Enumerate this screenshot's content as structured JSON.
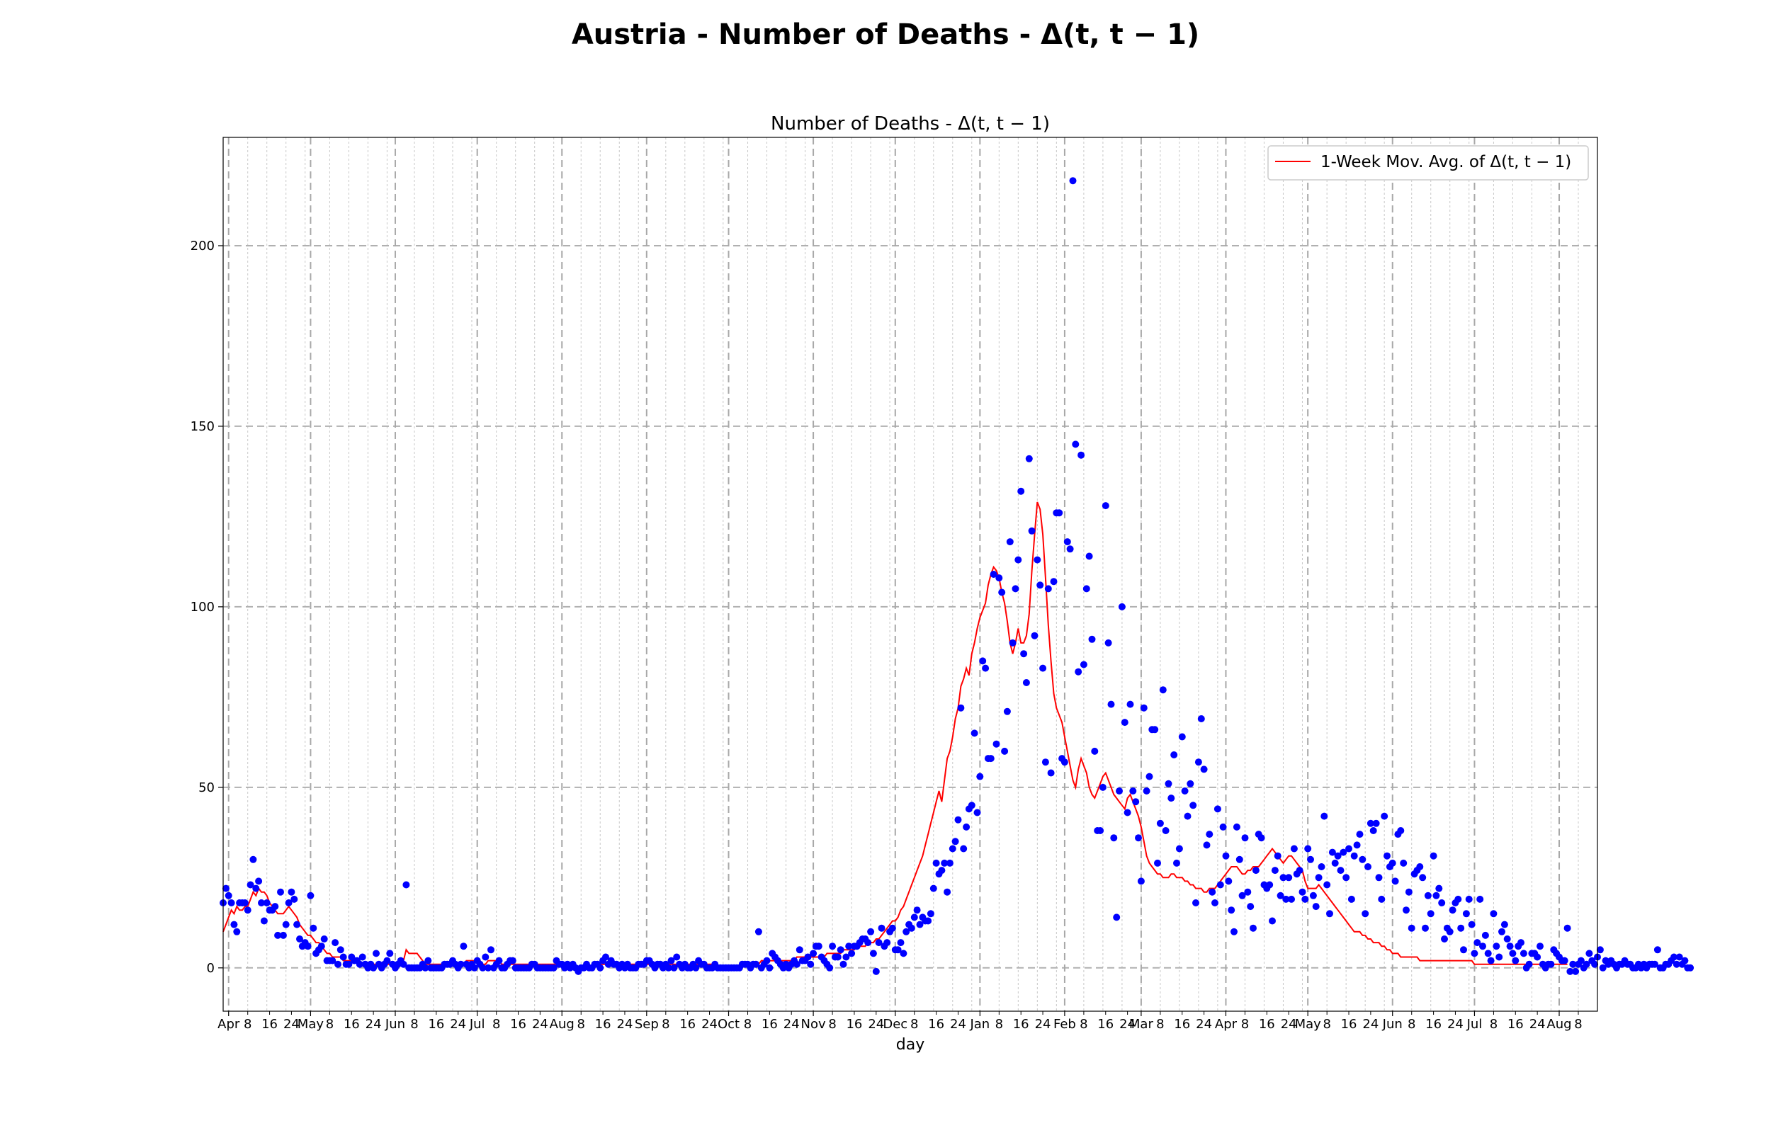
{
  "figure": {
    "suptitle": "Austria - Number of Deaths - Δ(t, t − 1)"
  },
  "chart_data": {
    "type": "scatter",
    "title": "Number of Deaths - Δ(t, t − 1)",
    "xlabel": "day",
    "ylabel": "",
    "x_range": [
      "2020-03-30",
      "2021-08-15"
    ],
    "ylim": [
      -12,
      230
    ],
    "yticks": [
      0,
      50,
      100,
      150,
      200
    ],
    "month_ticks": [
      {
        "date": "2020-04-01",
        "label": "Apr"
      },
      {
        "date": "2020-05-01",
        "label": "May"
      },
      {
        "date": "2020-06-01",
        "label": "Jun"
      },
      {
        "date": "2020-07-01",
        "label": "Jul"
      },
      {
        "date": "2020-08-01",
        "label": "Aug"
      },
      {
        "date": "2020-09-01",
        "label": "Sep"
      },
      {
        "date": "2020-10-01",
        "label": "Oct"
      },
      {
        "date": "2020-11-01",
        "label": "Nov"
      },
      {
        "date": "2020-12-01",
        "label": "Dec"
      },
      {
        "date": "2021-01-01",
        "label": "Jan"
      },
      {
        "date": "2021-02-01",
        "label": "Feb"
      },
      {
        "date": "2021-03-01",
        "label": "Mar"
      },
      {
        "date": "2021-04-01",
        "label": "Apr"
      },
      {
        "date": "2021-05-01",
        "label": "May"
      },
      {
        "date": "2021-06-01",
        "label": "Jun"
      },
      {
        "date": "2021-07-01",
        "label": "Jul"
      },
      {
        "date": "2021-08-01",
        "label": "Aug"
      }
    ],
    "day_tick_labels": [
      "8",
      "16",
      "24"
    ],
    "grid": true,
    "legend": {
      "position": "top-right",
      "entries": [
        {
          "name": "1-Week Mov. Avg. of Δ(t, t − 1)",
          "color": "#ff0000"
        }
      ]
    },
    "series": [
      {
        "name": "Δ(t, t − 1)",
        "kind": "points",
        "color": "#0000ff",
        "start": "2020-03-30",
        "values": [
          18,
          22,
          20,
          18,
          12,
          10,
          18,
          18,
          18,
          16,
          23,
          30,
          22,
          24,
          18,
          13,
          18,
          16,
          16,
          17,
          9,
          21,
          9,
          12,
          18,
          21,
          19,
          12,
          8,
          6,
          7,
          6,
          20,
          11,
          4,
          5,
          6,
          8,
          2,
          2,
          2,
          7,
          1,
          5,
          3,
          1,
          1,
          3,
          2,
          2,
          1,
          3,
          1,
          0,
          1,
          0,
          4,
          1,
          0,
          1,
          2,
          4,
          1,
          0,
          1,
          2,
          1,
          23,
          0,
          0,
          0,
          0,
          0,
          1,
          0,
          2,
          0,
          0,
          0,
          0,
          0,
          1,
          1,
          1,
          2,
          1,
          0,
          1,
          6,
          1,
          0,
          1,
          0,
          2,
          1,
          0,
          3,
          0,
          5,
          0,
          1,
          2,
          0,
          0,
          1,
          2,
          2,
          0,
          0,
          0,
          0,
          0,
          0,
          1,
          1,
          0,
          0,
          0,
          0,
          0,
          0,
          0,
          2,
          1,
          1,
          0,
          1,
          0,
          1,
          0,
          -1,
          0,
          0,
          1,
          0,
          0,
          1,
          1,
          0,
          2,
          3,
          1,
          2,
          1,
          1,
          0,
          1,
          0,
          1,
          0,
          0,
          0,
          1,
          1,
          1,
          2,
          2,
          1,
          0,
          1,
          1,
          0,
          1,
          0,
          2,
          0,
          3,
          1,
          0,
          1,
          0,
          0,
          1,
          0,
          2,
          1,
          1,
          0,
          0,
          0,
          1,
          0,
          0,
          0,
          0,
          0,
          0,
          0,
          0,
          0,
          1,
          1,
          1,
          0,
          1,
          1,
          10,
          0,
          1,
          2,
          0,
          4,
          3,
          2,
          1,
          0,
          1,
          0,
          1,
          2,
          1,
          5,
          2,
          2,
          3,
          1,
          4,
          6,
          6,
          3,
          2,
          1,
          0,
          6,
          3,
          3,
          5,
          1,
          3,
          6,
          4,
          6,
          6,
          7,
          8,
          8,
          7,
          10,
          4,
          -1,
          7,
          11,
          6,
          7,
          10,
          11,
          5,
          5,
          7,
          4,
          10,
          12,
          11,
          14,
          16,
          12,
          14,
          13,
          13,
          15,
          22,
          29,
          26,
          27,
          29,
          21,
          29,
          33,
          35,
          41,
          72,
          33,
          39,
          44,
          45,
          65,
          43,
          53,
          85,
          83,
          58,
          58,
          109,
          62,
          108,
          104,
          60,
          71,
          118,
          90,
          105,
          113,
          132,
          87,
          79,
          141,
          121,
          92,
          113,
          106,
          83,
          57,
          105,
          54,
          107,
          126,
          126,
          58,
          57,
          118,
          116,
          218,
          145,
          82,
          142,
          84,
          105,
          114,
          91,
          60,
          38,
          38,
          50,
          128,
          90,
          73,
          36,
          14,
          49,
          100,
          68,
          43,
          73,
          49,
          46,
          36,
          24,
          72,
          49,
          53,
          66,
          66,
          29,
          40,
          77,
          38,
          51,
          47,
          59,
          29,
          33,
          64,
          49,
          42,
          51,
          45,
          18,
          57,
          69,
          55,
          34,
          37,
          21,
          18,
          44,
          23,
          39,
          31,
          24,
          16,
          10,
          39,
          30,
          20,
          36,
          21,
          17,
          11,
          27,
          37,
          36,
          23,
          22,
          23,
          13,
          27,
          31,
          20,
          25,
          19,
          25,
          19,
          33,
          26,
          27,
          21,
          19,
          33,
          30,
          20,
          17,
          25,
          28,
          42,
          23,
          15,
          32,
          29,
          31,
          27,
          32,
          25,
          33,
          19,
          31,
          34,
          37,
          30,
          15,
          28,
          40,
          38,
          40,
          25,
          19,
          42,
          31,
          28,
          29,
          24,
          37,
          38,
          29,
          16,
          21,
          11,
          26,
          27,
          28,
          25,
          11,
          20,
          15,
          31,
          20,
          22,
          18,
          8,
          11,
          10,
          16,
          18,
          19,
          11,
          5,
          15,
          19,
          12,
          4,
          7,
          19,
          6,
          9,
          4,
          2,
          15,
          6,
          3,
          10,
          12,
          8,
          6,
          4,
          2,
          6,
          7,
          4,
          0,
          1,
          4,
          4,
          3,
          6,
          1,
          0,
          1,
          1,
          5,
          4,
          3,
          2,
          2,
          11,
          -1,
          1,
          -1,
          1,
          2,
          0,
          1,
          4,
          2,
          1,
          3,
          5,
          0,
          2,
          1,
          2,
          1,
          0,
          1,
          1,
          2,
          1,
          1,
          0,
          0,
          1,
          0,
          1,
          0,
          1,
          1,
          1,
          5,
          0,
          0,
          1,
          1,
          2,
          3,
          1,
          3,
          1,
          2,
          0,
          0
        ]
      },
      {
        "name": "1-Week Mov. Avg. of Δ(t, t − 1)",
        "kind": "line",
        "color": "#ff0000",
        "start": "2020-03-30",
        "values": [
          10,
          12,
          14,
          16,
          15,
          17,
          16,
          16,
          17,
          17,
          19,
          21,
          20,
          22,
          21,
          21,
          20,
          18,
          17,
          16,
          15,
          15,
          15,
          16,
          17,
          16,
          15,
          14,
          12,
          11,
          10,
          9,
          9,
          8,
          7,
          7,
          6,
          5,
          4,
          4,
          3,
          3,
          3,
          3,
          2,
          2,
          2,
          2,
          2,
          2,
          1,
          1,
          1,
          1,
          1,
          1,
          1,
          1,
          1,
          1,
          1,
          1,
          1,
          1,
          1,
          1,
          2,
          5,
          4,
          4,
          4,
          4,
          3,
          2,
          1,
          1,
          1,
          1,
          1,
          1,
          1,
          1,
          1,
          1,
          1,
          1,
          1,
          1,
          1,
          2,
          2,
          2,
          2,
          2,
          2,
          1,
          1,
          2,
          2,
          2,
          2,
          2,
          1,
          1,
          1,
          1,
          1,
          1,
          1,
          1,
          1,
          1,
          1,
          1,
          1,
          1,
          1,
          1,
          1,
          1,
          1,
          1,
          1,
          1,
          1,
          1,
          1,
          1,
          1,
          0,
          0,
          0,
          0,
          0,
          0,
          0,
          0,
          1,
          1,
          1,
          1,
          1,
          1,
          1,
          1,
          1,
          1,
          1,
          1,
          1,
          1,
          1,
          1,
          1,
          1,
          1,
          1,
          1,
          1,
          1,
          1,
          1,
          1,
          1,
          1,
          1,
          1,
          1,
          1,
          1,
          1,
          1,
          1,
          1,
          1,
          1,
          1,
          1,
          1,
          1,
          0,
          0,
          0,
          0,
          0,
          0,
          0,
          0,
          0,
          0,
          0,
          1,
          1,
          1,
          1,
          1,
          1,
          2,
          2,
          2,
          2,
          2,
          2,
          2,
          2,
          2,
          2,
          2,
          2,
          2,
          3,
          3,
          3,
          3,
          3,
          3,
          3,
          3,
          3,
          3,
          3,
          4,
          4,
          4,
          4,
          4,
          4,
          5,
          5,
          5,
          5,
          5,
          6,
          6,
          6,
          6,
          7,
          7,
          7,
          8,
          8,
          9,
          10,
          11,
          12,
          13,
          13,
          14,
          16,
          17,
          19,
          21,
          23,
          25,
          27,
          29,
          31,
          34,
          37,
          40,
          43,
          46,
          49,
          46,
          52,
          58,
          60,
          64,
          69,
          72,
          78,
          80,
          83,
          81,
          87,
          90,
          94,
          97,
          99,
          101,
          106,
          109,
          111,
          110,
          108,
          104,
          101,
          96,
          90,
          87,
          90,
          94,
          90,
          90,
          92,
          98,
          110,
          120,
          129,
          127,
          120,
          108,
          95,
          85,
          76,
          72,
          70,
          68,
          64,
          60,
          56,
          52,
          50,
          55,
          58,
          56,
          54,
          50,
          48,
          47,
          49,
          51,
          53,
          54,
          52,
          50,
          48,
          47,
          46,
          45,
          44,
          47,
          48,
          46,
          44,
          42,
          39,
          35,
          31,
          29,
          28,
          27,
          26,
          26,
          25,
          25,
          25,
          26,
          26,
          25,
          25,
          25,
          24,
          24,
          23,
          23,
          22,
          22,
          22,
          21,
          21,
          22,
          22,
          22,
          23,
          24,
          25,
          26,
          27,
          28,
          28,
          28,
          27,
          26,
          26,
          27,
          27,
          28,
          28,
          28,
          29,
          30,
          31,
          32,
          33,
          32,
          31,
          30,
          29,
          30,
          31,
          31,
          30,
          29,
          28,
          27,
          24,
          22,
          22,
          22,
          22,
          23,
          22,
          21,
          20,
          19,
          18,
          17,
          16,
          15,
          14,
          13,
          12,
          11,
          10,
          10,
          10,
          9,
          9,
          8,
          8,
          7,
          7,
          7,
          6,
          6,
          5,
          5,
          4,
          4,
          4,
          3,
          3,
          3,
          3,
          3,
          3,
          3,
          2,
          2,
          2,
          2,
          2,
          2,
          2,
          2,
          2,
          2,
          2,
          2,
          2,
          2,
          2,
          2,
          2,
          2,
          2,
          2,
          1,
          1,
          1,
          1,
          1,
          1,
          1,
          1,
          1,
          1,
          1,
          1,
          1,
          1,
          1,
          1,
          1,
          1,
          1,
          1,
          1,
          1,
          1,
          1,
          1,
          1,
          1,
          1,
          1,
          1,
          1,
          1,
          1,
          1,
          1
        ]
      }
    ]
  }
}
